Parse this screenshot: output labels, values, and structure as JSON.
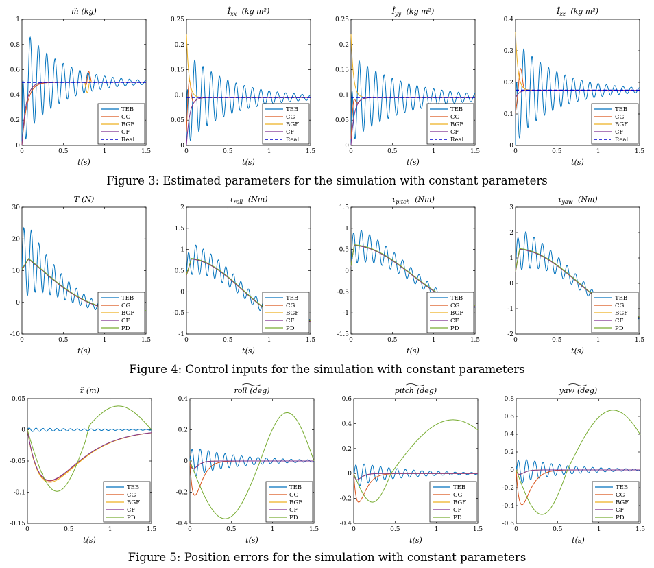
{
  "figures": [
    {
      "caption": "Figure 3: Estimated parameters for the simulation with constant parameters"
    },
    {
      "caption": "Figure 4: Control inputs for the simulation with constant parameters"
    },
    {
      "caption": "Figure 5: Position errors for the simulation with constant parameters"
    }
  ],
  "colors": {
    "TEB": "#0072bd",
    "CG": "#d95319",
    "BGF": "#edb120",
    "CF": "#7e2f8e",
    "PD": "#77ac30",
    "Real": "#0000cc"
  },
  "chart_data": [
    {
      "id": "m",
      "type": "line",
      "title_sym": "m̂",
      "title_unit": "(kg)",
      "xlabel": "t(s)",
      "xlim": [
        0,
        1.5
      ],
      "ylim": [
        0,
        1
      ],
      "xticks": [
        "0",
        "0.5",
        "1",
        "1.5"
      ],
      "yticks": [
        "0",
        "0.2",
        "0.4",
        "0.6",
        "0.8",
        "1"
      ],
      "legend": [
        "TEB",
        "CG",
        "BGF",
        "CF",
        "Real"
      ],
      "legend_position": "bottom-right",
      "series": [
        {
          "name": "TEB",
          "y0": 0.0,
          "target": 0.5,
          "amp": 0.45,
          "freq": 10,
          "decay": 2.2,
          "phase": 1.57,
          "tau": 0.02
        },
        {
          "name": "CG",
          "y0": 0.0,
          "target": 0.5,
          "tau": 0.06,
          "bump": 0.07
        },
        {
          "name": "BGF",
          "y0": 0.0,
          "target": 0.5,
          "tau": 0.05,
          "bump": 0.07
        },
        {
          "name": "CF",
          "y0": 0.0,
          "target": 0.5,
          "tau": 0.05
        },
        {
          "name": "Real",
          "dashed": true,
          "const": 0.5
        }
      ]
    },
    {
      "id": "ixx",
      "type": "line",
      "title_sym": "Î",
      "title_sub": "xx",
      "title_unit": "(kg m²)",
      "xlabel": "t(s)",
      "xlim": [
        0,
        1.5
      ],
      "ylim": [
        0,
        0.25
      ],
      "xticks": [
        "0",
        "0.5",
        "1",
        "1.5"
      ],
      "yticks": [
        "0",
        "0.05",
        "0.1",
        "0.15",
        "0.2",
        "0.25"
      ],
      "legend": [
        "TEB",
        "CG",
        "BGF",
        "CF",
        "Real"
      ],
      "legend_position": "bottom-right",
      "series": [
        {
          "name": "TEB",
          "y0": 0.0,
          "target": 0.095,
          "amp": 0.09,
          "freq": 10,
          "decay": 1.9,
          "phase": 1.57,
          "tau": 0.015
        },
        {
          "name": "CG",
          "y0": 0.0,
          "target": 0.095,
          "tau": 0.04,
          "peak": 0.17,
          "peak_t": 0.03
        },
        {
          "name": "BGF",
          "y0": 0.22,
          "target": 0.095,
          "tau": 0.03
        },
        {
          "name": "CF",
          "y0": 0.0,
          "target": 0.095,
          "tau": 0.04
        },
        {
          "name": "Real",
          "dashed": true,
          "const": 0.095
        }
      ]
    },
    {
      "id": "iyy",
      "type": "line",
      "title_sym": "Î",
      "title_sub": "yy",
      "title_unit": "(kg m²)",
      "xlabel": "t(s)",
      "xlim": [
        0,
        1.5
      ],
      "ylim": [
        0,
        0.25
      ],
      "xticks": [
        "0",
        "0.5",
        "1",
        "1.5"
      ],
      "yticks": [
        "0",
        "0.05",
        "0.1",
        "0.15",
        "0.2",
        "0.25"
      ],
      "legend": [
        "TEB",
        "CG",
        "BGF",
        "CF",
        "Real"
      ],
      "legend_position": "bottom-right",
      "series": [
        {
          "name": "TEB",
          "y0": 0.0,
          "target": 0.095,
          "amp": 0.085,
          "freq": 10,
          "decay": 1.6,
          "phase": 1.57,
          "tau": 0.015
        },
        {
          "name": "CG",
          "y0": 0.0,
          "target": 0.095,
          "tau": 0.04,
          "peak": 0.13,
          "peak_t": 0.03
        },
        {
          "name": "BGF",
          "y0": 0.22,
          "target": 0.095,
          "tau": 0.03
        },
        {
          "name": "CF",
          "y0": 0.0,
          "target": 0.095,
          "tau": 0.04
        },
        {
          "name": "Real",
          "dashed": true,
          "const": 0.095
        }
      ]
    },
    {
      "id": "izz",
      "type": "line",
      "title_sym": "Î",
      "title_sub": "zz",
      "title_unit": "(kg m²)",
      "xlabel": "t(s)",
      "xlim": [
        0,
        1.5
      ],
      "ylim": [
        0,
        0.4
      ],
      "xticks": [
        "0",
        "0.5",
        "1",
        "1.5"
      ],
      "yticks": [
        "0",
        "0.1",
        "0.2",
        "0.3",
        "0.4"
      ],
      "legend": [
        "TEB",
        "CG",
        "BGF",
        "CF",
        "Real"
      ],
      "legend_position": "bottom-right",
      "series": [
        {
          "name": "TEB",
          "y0": 0.0,
          "target": 0.175,
          "amp": 0.16,
          "freq": 10,
          "decay": 2.0,
          "phase": 1.57,
          "tau": 0.015
        },
        {
          "name": "CG",
          "y0": 0.1,
          "target": 0.175,
          "tau": 0.04,
          "peak": 0.26,
          "peak_t": 0.06
        },
        {
          "name": "BGF",
          "y0": 0.36,
          "target": 0.175,
          "tau": 0.03
        },
        {
          "name": "CF",
          "y0": 0.15,
          "target": 0.175,
          "tau": 0.04
        },
        {
          "name": "Real",
          "dashed": true,
          "const": 0.175
        }
      ]
    },
    {
      "id": "T",
      "type": "line",
      "title_sym": "T",
      "title_unit": "(N)",
      "xlabel": "t(s)",
      "xlim": [
        0,
        1.5
      ],
      "ylim": [
        -10,
        30
      ],
      "xticks": [
        "0",
        "0.5",
        "1",
        "1.5"
      ],
      "yticks": [
        "-10",
        "0",
        "10",
        "20",
        "30"
      ],
      "legend": [
        "TEB",
        "CG",
        "BGF",
        "CF",
        "PD"
      ],
      "legend_position": "bottom-right",
      "series": [
        {
          "name": "TEB",
          "amp": 13,
          "freq": 11,
          "decay": 2.5
        },
        {
          "name": "CG"
        },
        {
          "name": "BGF"
        },
        {
          "name": "CF"
        },
        {
          "name": "PD"
        }
      ]
    },
    {
      "id": "troll",
      "type": "line",
      "title_sym": "τ",
      "title_sub": "roll",
      "title_unit": "(Nm)",
      "xlabel": "t(s)",
      "xlim": [
        0,
        1.5
      ],
      "ylim": [
        -1,
        2
      ],
      "xticks": [
        "0",
        "0.5",
        "1",
        "1.5"
      ],
      "yticks": [
        "-1",
        "-0.5",
        "0",
        "0.5",
        "1",
        "1.5",
        "2"
      ],
      "legend": [
        "TEB",
        "CG",
        "BGF",
        "CF",
        "PD"
      ],
      "legend_position": "bottom-right",
      "series": [
        {
          "name": "TEB",
          "amp": 0.4,
          "freq": 11,
          "decay": 1.3
        },
        {
          "name": "CG"
        },
        {
          "name": "BGF"
        },
        {
          "name": "CF"
        },
        {
          "name": "PD"
        }
      ]
    },
    {
      "id": "tpitch",
      "type": "line",
      "title_sym": "τ",
      "title_sub": "pitch",
      "title_unit": "(Nm)",
      "xlabel": "t(s)",
      "xlim": [
        0,
        1.5
      ],
      "ylim": [
        -1.5,
        1.5
      ],
      "xticks": [
        "0",
        "0.5",
        "1",
        "1.5"
      ],
      "yticks": [
        "-1.5",
        "-1",
        "-0.5",
        "0",
        "0.5",
        "1",
        "1.5"
      ],
      "legend": [
        "TEB",
        "CG",
        "BGF",
        "CF",
        "PD"
      ],
      "legend_position": "bottom-right",
      "series": [
        {
          "name": "TEB",
          "amp": 0.45,
          "freq": 10,
          "decay": 1.4
        },
        {
          "name": "CG"
        },
        {
          "name": "BGF"
        },
        {
          "name": "CF"
        },
        {
          "name": "PD"
        }
      ]
    },
    {
      "id": "tyaw",
      "type": "line",
      "title_sym": "τ",
      "title_sub": "yaw",
      "title_unit": "(Nm)",
      "xlabel": "t(s)",
      "xlim": [
        0,
        1.5
      ],
      "ylim": [
        -2,
        3
      ],
      "xticks": [
        "0",
        "0.5",
        "1",
        "1.5"
      ],
      "yticks": [
        "-2",
        "-1",
        "0",
        "1",
        "2",
        "3"
      ],
      "legend": [
        "TEB",
        "CG",
        "BGF",
        "CF",
        "PD"
      ],
      "legend_position": "bottom-right",
      "series": [
        {
          "name": "TEB",
          "amp": 0.9,
          "freq": 10,
          "decay": 1.7
        },
        {
          "name": "CG"
        },
        {
          "name": "BGF"
        },
        {
          "name": "CF"
        },
        {
          "name": "PD"
        }
      ]
    },
    {
      "id": "ez",
      "type": "line",
      "title_sym": "z̃",
      "title_unit": "(m)",
      "xlabel": "t(s)",
      "xlim": [
        0,
        1.5
      ],
      "ylim": [
        -0.15,
        0.05
      ],
      "xticks": [
        "0",
        "0.5",
        "1",
        "1.5"
      ],
      "yticks": [
        "-0.15",
        "-0.1",
        "-0.05",
        "0",
        "0.05"
      ],
      "legend": [
        "TEB",
        "CG",
        "BGF",
        "CF",
        "PD"
      ],
      "legend_position": "bottom-right",
      "series": [
        {
          "name": "TEB",
          "amp": 0.003,
          "freq": 12,
          "decay": 1.0,
          "base": "zero"
        },
        {
          "name": "CG",
          "dip": -0.082,
          "dip_t": 0.27
        },
        {
          "name": "BGF",
          "dip": -0.084,
          "dip_t": 0.27
        },
        {
          "name": "CF",
          "dip": -0.081,
          "dip_t": 0.27
        },
        {
          "name": "PD",
          "pd_osc": true
        }
      ]
    },
    {
      "id": "eroll",
      "type": "line",
      "title_sym": "roll",
      "title_tilde": true,
      "title_unit": "(deg)",
      "xlabel": "t(s)",
      "xlim": [
        0,
        1.5
      ],
      "ylim": [
        -0.4,
        0.4
      ],
      "xticks": [
        "0",
        "0.5",
        "1",
        "1.5"
      ],
      "yticks": [
        "-0.4",
        "-0.2",
        "0",
        "0.2",
        "0.4"
      ],
      "legend": [
        "TEB",
        "CG",
        "BGF",
        "CF",
        "PD"
      ],
      "legend_position": "bottom-right",
      "series": [
        {
          "name": "TEB",
          "amp": 0.1,
          "freq": 10,
          "decay": 1.8,
          "base": "zero"
        },
        {
          "name": "CG",
          "dip": -0.22,
          "dip_t": 0.06
        },
        {
          "name": "BGF",
          "dip": -0.05,
          "dip_t": 0.04
        },
        {
          "name": "CF",
          "dip": -0.05,
          "dip_t": 0.04
        },
        {
          "name": "PD",
          "pd_osc": true
        }
      ]
    },
    {
      "id": "epitch",
      "type": "line",
      "title_sym": "pitch",
      "title_tilde": true,
      "title_unit": "(deg)",
      "xlabel": "t(s)",
      "xlim": [
        0,
        1.5
      ],
      "ylim": [
        -0.4,
        0.6
      ],
      "xticks": [
        "0",
        "0.5",
        "1",
        "1.5"
      ],
      "yticks": [
        "-0.4",
        "-0.2",
        "0",
        "0.2",
        "0.4",
        "0.6"
      ],
      "legend": [
        "TEB",
        "CG",
        "BGF",
        "CF",
        "PD"
      ],
      "legend_position": "bottom-right",
      "series": [
        {
          "name": "TEB",
          "amp": 0.1,
          "freq": 10,
          "decay": 1.8,
          "base": "zero"
        },
        {
          "name": "CG",
          "dip": -0.23,
          "dip_t": 0.06
        },
        {
          "name": "BGF",
          "dip": -0.05,
          "dip_t": 0.04
        },
        {
          "name": "CF",
          "dip": -0.05,
          "dip_t": 0.04
        },
        {
          "name": "PD",
          "pd_osc": true
        }
      ]
    },
    {
      "id": "eyaw",
      "type": "line",
      "title_sym": "yaw",
      "title_tilde": true,
      "title_unit": "(deg)",
      "xlabel": "t(s)",
      "xlim": [
        0,
        1.5
      ],
      "ylim": [
        -0.6,
        0.8
      ],
      "xticks": [
        "0",
        "0.5",
        "1",
        "1.5"
      ],
      "yticks": [
        "-0.6",
        "-0.4",
        "-0.2",
        "0",
        "0.2",
        "0.4",
        "0.6",
        "0.8"
      ],
      "legend": [
        "TEB",
        "CG",
        "BGF",
        "CF",
        "PD"
      ],
      "legend_position": "bottom-right",
      "series": [
        {
          "name": "TEB",
          "amp": 0.15,
          "freq": 10,
          "decay": 1.8,
          "base": "zero"
        },
        {
          "name": "CG",
          "dip": -0.39,
          "dip_t": 0.07
        },
        {
          "name": "BGF",
          "dip": -0.05,
          "dip_t": 0.04
        },
        {
          "name": "CF",
          "dip": -0.05,
          "dip_t": 0.04
        },
        {
          "name": "PD",
          "pd_osc": true
        }
      ]
    }
  ]
}
